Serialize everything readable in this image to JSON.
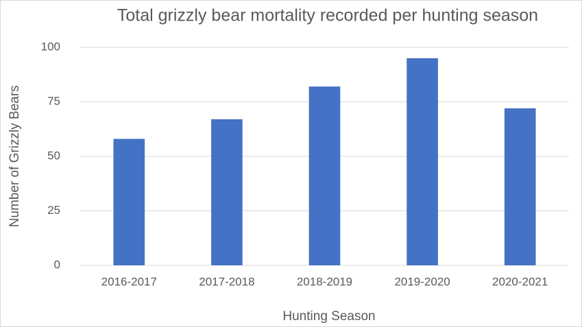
{
  "chart_data": {
    "type": "bar",
    "title": "Total grizzly bear mortality recorded per hunting season",
    "x_label": "Hunting Season",
    "y_label": "Number of Grizzly Bears",
    "categories": [
      "2016-2017",
      "2017-2018",
      "2018-2019",
      "2019-2020",
      "2020-2021"
    ],
    "values": [
      58,
      67,
      82,
      95,
      72
    ],
    "color": "#4472c4",
    "ylim": [
      0,
      100
    ],
    "yticks": [
      0,
      25,
      50,
      75,
      100
    ],
    "grid": true
  }
}
